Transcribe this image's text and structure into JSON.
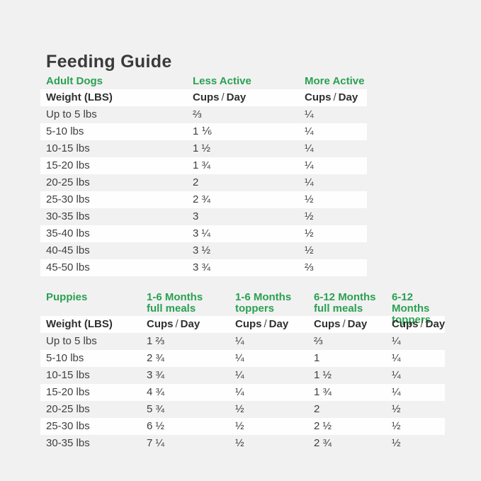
{
  "page": {
    "title": "Feeding Guide",
    "background_color": "#f1f1f2",
    "accent_color": "#2aa150",
    "text_color": "#3e3e3e"
  },
  "labels": {
    "weight_header": "Weight (LBS)",
    "cups": "Cups",
    "separator": "/",
    "day": "Day"
  },
  "adult_table": {
    "section_label": "Adult Dogs",
    "column_labels": [
      "Less Active",
      "More Active"
    ],
    "rows": [
      {
        "weight": "Up to 5 lbs",
        "less_active": "⅔",
        "more_active": "¼"
      },
      {
        "weight": "5-10 lbs",
        "less_active": "1 ⅙",
        "more_active": "¼"
      },
      {
        "weight": "10-15 lbs",
        "less_active": "1 ½",
        "more_active": "¼"
      },
      {
        "weight": "15-20 lbs",
        "less_active": "1 ¾",
        "more_active": "¼"
      },
      {
        "weight": "20-25 lbs",
        "less_active": "2",
        "more_active": "¼"
      },
      {
        "weight": "25-30 lbs",
        "less_active": "2 ¾",
        "more_active": "½"
      },
      {
        "weight": "30-35 lbs",
        "less_active": "3",
        "more_active": "½"
      },
      {
        "weight": "35-40 lbs",
        "less_active": "3 ¼",
        "more_active": "½"
      },
      {
        "weight": "40-45 lbs",
        "less_active": "3 ½",
        "more_active": "½"
      },
      {
        "weight": "45-50 lbs",
        "less_active": "3 ¾",
        "more_active": "⅔"
      }
    ]
  },
  "puppies_table": {
    "section_label": "Puppies",
    "column_labels": [
      {
        "line1": "1-6 Months",
        "line2": "full meals"
      },
      {
        "line1": "1-6 Months",
        "line2": "toppers"
      },
      {
        "line1": "6-12 Months",
        "line2": "full meals"
      },
      {
        "line1": "6-12 Months",
        "line2": "toppers"
      }
    ],
    "rows": [
      {
        "weight": "Up to 5 lbs",
        "m16_full": "1 ⅔",
        "m16_toppers": "¼",
        "m612_full": "⅔",
        "m612_toppers": "¼"
      },
      {
        "weight": "5-10 lbs",
        "m16_full": "2 ¾",
        "m16_toppers": "¼",
        "m612_full": "1",
        "m612_toppers": "¼"
      },
      {
        "weight": "10-15 lbs",
        "m16_full": "3 ¾",
        "m16_toppers": "¼",
        "m612_full": "1 ½",
        "m612_toppers": "¼"
      },
      {
        "weight": "15-20 lbs",
        "m16_full": "4 ¾",
        "m16_toppers": "¼",
        "m612_full": "1 ¾",
        "m612_toppers": "¼"
      },
      {
        "weight": "20-25 lbs",
        "m16_full": "5 ¾",
        "m16_toppers": "½",
        "m612_full": "2",
        "m612_toppers": "½"
      },
      {
        "weight": "25-30 lbs",
        "m16_full": "6 ½",
        "m16_toppers": "½",
        "m612_full": "2 ½",
        "m612_toppers": "½"
      },
      {
        "weight": "30-35 lbs",
        "m16_full": "7 ¼",
        "m16_toppers": "½",
        "m612_full": "2 ¾",
        "m612_toppers": "½"
      }
    ]
  }
}
